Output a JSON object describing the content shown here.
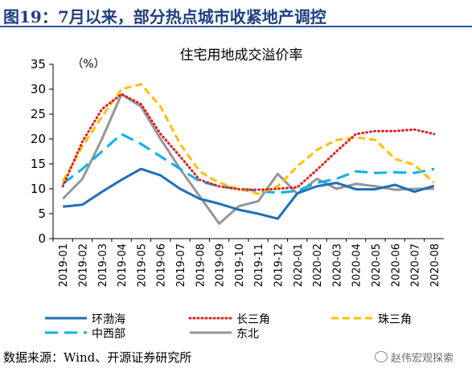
{
  "header": {
    "title": "图19：7月以来，部分热点城市收紧地产调控"
  },
  "footer": {
    "source": "数据来源：Wind、开源证券研究所",
    "watermark": "赵伟宏观探索"
  },
  "chart_data": {
    "type": "line",
    "title": "住宅用地成交溢价率",
    "unit_label": "（%）",
    "ylim": [
      0,
      35
    ],
    "yticks": [
      0,
      5,
      10,
      15,
      20,
      25,
      30,
      35
    ],
    "categories": [
      "2019-01",
      "2019-02",
      "2019-03",
      "2019-04",
      "2019-05",
      "2019-06",
      "2019-07",
      "2019-08",
      "2019-09",
      "2019-10",
      "2019-11",
      "2019-12",
      "2020-01",
      "2020-02",
      "2020-03",
      "2020-04",
      "2020-05",
      "2020-06",
      "2020-07",
      "2020-08"
    ],
    "grid": false,
    "legend_position": "bottom",
    "series": [
      {
        "name": "环渤海",
        "color": "#1f6fb5",
        "dash": "solid",
        "values": [
          6.4,
          6.8,
          9.4,
          11.8,
          14.0,
          12.7,
          10.0,
          8.0,
          7.0,
          5.8,
          5.0,
          4.0,
          9.1,
          10.5,
          11.2,
          9.9,
          9.9,
          10.8,
          9.4,
          10.6
        ]
      },
      {
        "name": "长三角",
        "color": "#e02020",
        "dash": "dotted",
        "values": [
          10.5,
          19.5,
          26.0,
          29.0,
          27.0,
          21.0,
          16.5,
          11.8,
          10.5,
          9.9,
          9.8,
          10.0,
          10.3,
          13.8,
          17.5,
          21.0,
          21.6,
          21.6,
          21.9,
          21.0
        ]
      },
      {
        "name": "珠三角",
        "color": "#ffc000",
        "dash": "dashed",
        "values": [
          11.5,
          18.5,
          24.5,
          30.0,
          31.0,
          26.5,
          19.0,
          13.5,
          11.2,
          10.0,
          9.0,
          10.5,
          14.5,
          17.8,
          19.8,
          20.3,
          19.8,
          16.0,
          14.8,
          11.2
        ]
      },
      {
        "name": "中西部",
        "color": "#00b0f0",
        "dash": "longdash",
        "values": [
          11.0,
          14.0,
          17.5,
          21.0,
          19.0,
          16.5,
          14.0,
          11.5,
          10.5,
          10.0,
          9.6,
          9.2,
          9.6,
          11.2,
          12.0,
          13.5,
          13.2,
          13.3,
          13.2,
          14.0
        ]
      },
      {
        "name": "东北",
        "color": "#969696",
        "dash": "solid",
        "values": [
          8.0,
          12.0,
          20.0,
          29.0,
          26.5,
          20.0,
          14.0,
          8.5,
          3.0,
          6.5,
          7.5,
          13.0,
          9.0,
          12.0,
          10.0,
          11.0,
          10.5,
          9.8,
          10.0,
          10.0
        ]
      }
    ]
  }
}
